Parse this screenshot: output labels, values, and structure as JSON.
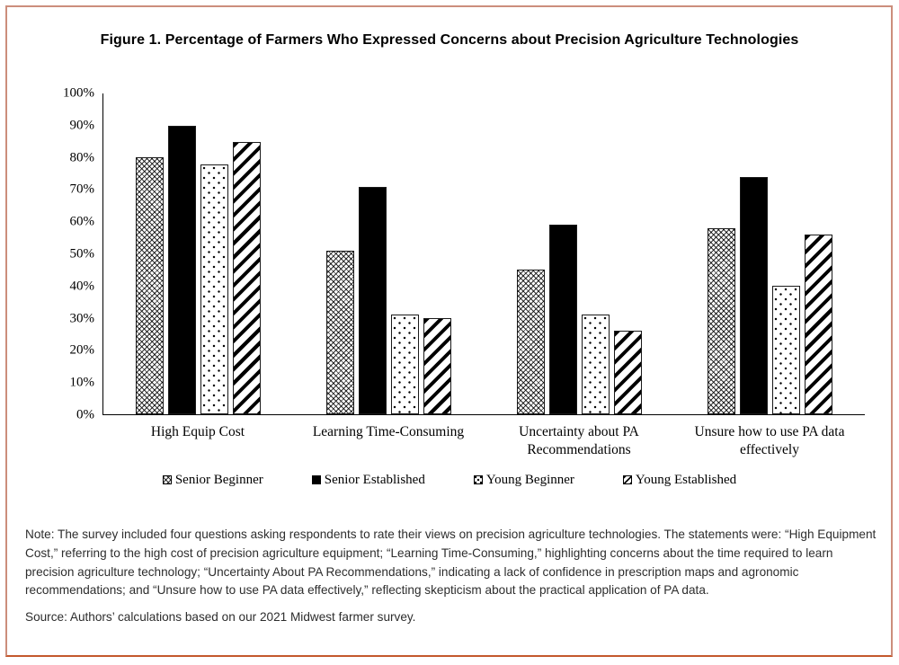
{
  "page": {
    "frame_border_color": "#cc8e7c",
    "frame_bottom_color": "#c4582d"
  },
  "chart_data": {
    "type": "bar",
    "title": "Figure 1. Percentage of Farmers Who Expressed Concerns about Precision Agriculture Technologies",
    "categories": [
      "High Equip Cost",
      "Learning Time-Consuming",
      "Uncertainty about PA Recommendations",
      "Unsure how to use PA data effectively"
    ],
    "series": [
      {
        "name": "Senior Beginner",
        "pattern": "crosshatch",
        "values": [
          80,
          51,
          45,
          58
        ]
      },
      {
        "name": "Senior Established",
        "pattern": "solid",
        "values": [
          90,
          71,
          59,
          74
        ]
      },
      {
        "name": "Young Beginner",
        "pattern": "dots",
        "values": [
          78,
          31,
          31,
          40
        ]
      },
      {
        "name": "Young Established",
        "pattern": "diagonal",
        "values": [
          85,
          30,
          26,
          56
        ]
      }
    ],
    "ylabel": "",
    "xlabel": "",
    "ylim": [
      0,
      100
    ],
    "yticks": [
      "100%",
      "90%",
      "80%",
      "70%",
      "60%",
      "50%",
      "40%",
      "30%",
      "20%",
      "10%",
      "0%"
    ],
    "grid": false,
    "legend_position": "bottom",
    "colors": {
      "foreground": "#000000",
      "background": "#ffffff"
    }
  },
  "note": "Note: The survey included four questions asking respondents to rate their views on precision agriculture technologies. The statements were: “High Equipment Cost,” referring to the high cost of precision agriculture equipment; “Learning Time-Consuming,” highlighting concerns about the time required to learn precision agriculture technology; “Uncertainty About PA Recommendations,” indicating a lack of confidence in prescription maps and agronomic recommendations; and “Unsure how to use PA data effectively,” reflecting skepticism about the practical application of PA data.",
  "source": "Source: Authors’ calculations based on our 2021 Midwest farmer survey."
}
